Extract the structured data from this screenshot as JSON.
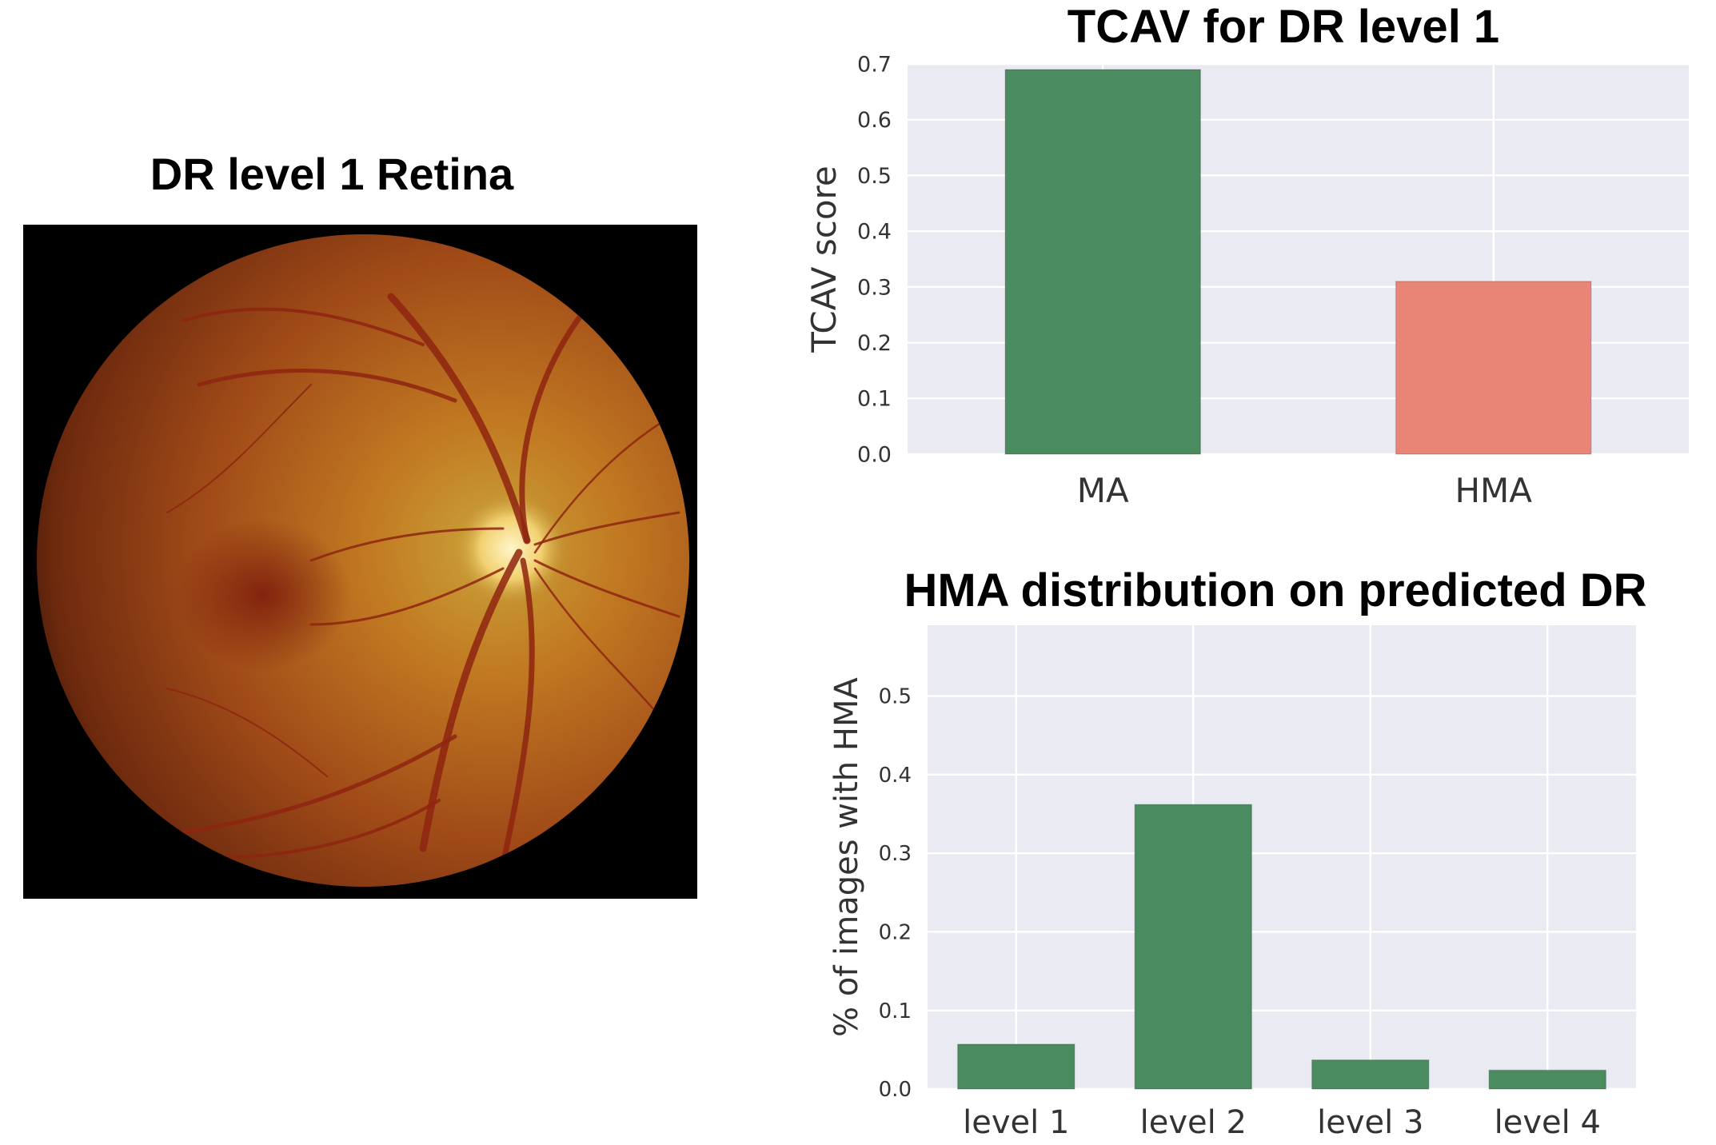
{
  "retina": {
    "title": "DR level 1 Retina"
  },
  "chart_data": [
    {
      "type": "bar",
      "title": "TCAV for DR level 1",
      "xlabel": "",
      "ylabel": "TCAV score",
      "categories": [
        "MA",
        "HMA"
      ],
      "values": [
        0.69,
        0.31
      ],
      "colors": [
        "#4a8b5f",
        "#e98576"
      ],
      "ylim": [
        0,
        0.7
      ],
      "yticks": [
        "0.0",
        "0.1",
        "0.2",
        "0.3",
        "0.4",
        "0.5",
        "0.6",
        "0.7"
      ],
      "grid": true
    },
    {
      "type": "bar",
      "title": "HMA distribution on predicted DR",
      "xlabel": "",
      "ylabel": "% of images with HMA",
      "categories": [
        "level 1",
        "level 2",
        "level 3",
        "level 4"
      ],
      "values": [
        0.057,
        0.362,
        0.037,
        0.024
      ],
      "colors": [
        "#4a8b5f",
        "#4a8b5f",
        "#4a8b5f",
        "#4a8b5f"
      ],
      "ylim": [
        0,
        0.59
      ],
      "yticks": [
        "0.0",
        "0.1",
        "0.2",
        "0.3",
        "0.4",
        "0.5"
      ],
      "grid": true
    }
  ]
}
